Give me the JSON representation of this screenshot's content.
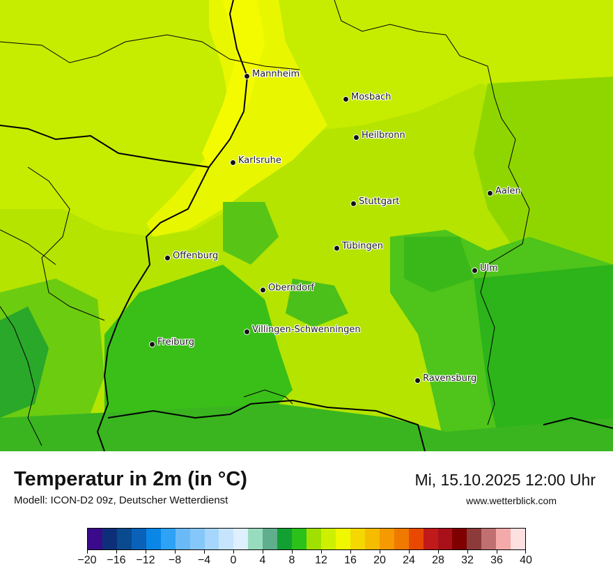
{
  "map": {
    "cities": [
      {
        "name": "Mannheim"
      },
      {
        "name": "Mosbach"
      },
      {
        "name": "Heilbronn"
      },
      {
        "name": "Karlsruhe"
      },
      {
        "name": "Aalen"
      },
      {
        "name": "Stuttgart"
      },
      {
        "name": "Tübingen"
      },
      {
        "name": "Offenburg"
      },
      {
        "name": "Ulm"
      },
      {
        "name": "Oberndorf"
      },
      {
        "name": "Villingen-Schwenningen"
      },
      {
        "name": "Freiburg"
      },
      {
        "name": "Ravensburg"
      }
    ]
  },
  "footer": {
    "title": "Temperatur in 2m (in °C)",
    "subtitle": "Modell: ICON-D2 09z, Deutscher Wetterdienst",
    "datetime": "Mi, 15.10.2025 12:00 Uhr",
    "website": "www.wetterblick.com"
  },
  "legend": {
    "colors": [
      "#3a0a8a",
      "#0d2f7a",
      "#0a4a8f",
      "#0a62b8",
      "#0a86e6",
      "#2ea2f5",
      "#6abaf8",
      "#86c7fa",
      "#a6d6fb",
      "#c6e4fc",
      "#deeffd",
      "#98dcc0",
      "#5fae8c",
      "#12a032",
      "#2cc01a",
      "#9fe000",
      "#cdef00",
      "#f0f800",
      "#f5d800",
      "#f5bc00",
      "#f59a00",
      "#f07a00",
      "#e84800",
      "#c01a1a",
      "#a8101a",
      "#800000",
      "#8c3a3a",
      "#c07070",
      "#f5aaaa",
      "#fde0e0"
    ],
    "tick_labels": [
      "−20",
      "−16",
      "−12",
      "−8",
      "−4",
      "0",
      "4",
      "8",
      "12",
      "16",
      "20",
      "24",
      "28",
      "32",
      "36",
      "40"
    ]
  }
}
